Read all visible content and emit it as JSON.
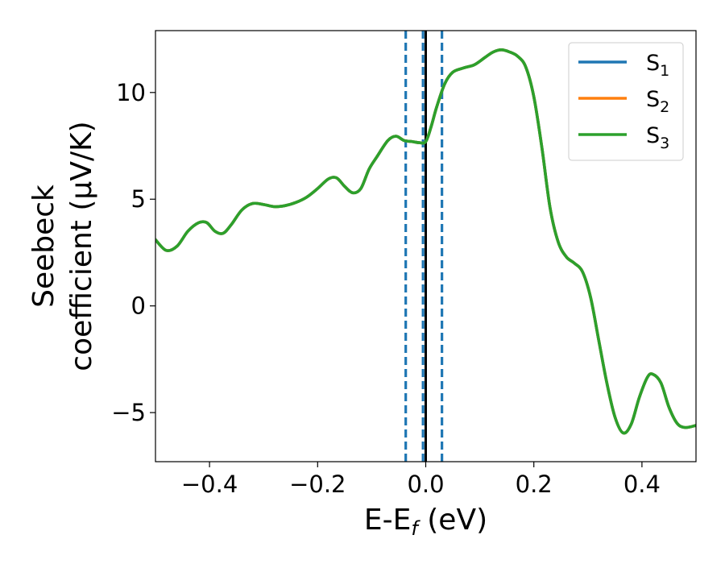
{
  "chart_data": {
    "type": "line",
    "xlabel_main": "E-E",
    "xlabel_sub": "f",
    "xlabel_suffix": " (eV)",
    "ylabel_line1": "Seebeck",
    "ylabel_line2": "coefficient  (μV/K)",
    "xlim": [
      -0.5,
      0.5
    ],
    "ylim": [
      -7.3,
      12.9
    ],
    "xticks": [
      -0.4,
      -0.2,
      0.0,
      0.2,
      0.4
    ],
    "xtick_labels": [
      "−0.4",
      "−0.2",
      "0.0",
      "0.2",
      "0.4"
    ],
    "yticks": [
      -5,
      0,
      5,
      10
    ],
    "ytick_labels": [
      "−5",
      "0",
      "5",
      "10"
    ],
    "grid": false,
    "legend_position": "upper right",
    "vlines": [
      {
        "x": 0.0,
        "style": "solid",
        "color": "#000000"
      },
      {
        "x": -0.037,
        "style": "dashed",
        "color": "#1f77b4"
      },
      {
        "x": -0.005,
        "style": "dashed",
        "color": "#1f77b4"
      },
      {
        "x": 0.03,
        "style": "dashed",
        "color": "#1f77b4"
      }
    ],
    "series": [
      {
        "name_main": "S",
        "name_sub": "1",
        "color": "#1f77b4"
      },
      {
        "name_main": "S",
        "name_sub": "2",
        "color": "#ff7f0e"
      },
      {
        "name_main": "S",
        "name_sub": "3",
        "color": "#2ca02c"
      }
    ],
    "x": [
      -0.5,
      -0.48,
      -0.46,
      -0.44,
      -0.42,
      -0.405,
      -0.39,
      -0.375,
      -0.36,
      -0.34,
      -0.32,
      -0.3,
      -0.28,
      -0.26,
      -0.24,
      -0.22,
      -0.2,
      -0.18,
      -0.165,
      -0.15,
      -0.135,
      -0.12,
      -0.105,
      -0.09,
      -0.07,
      -0.055,
      -0.04,
      -0.025,
      -0.012,
      0.0,
      0.01,
      0.02,
      0.035,
      0.05,
      0.07,
      0.09,
      0.11,
      0.125,
      0.14,
      0.155,
      0.17,
      0.185,
      0.2,
      0.215,
      0.23,
      0.245,
      0.26,
      0.275,
      0.29,
      0.305,
      0.32,
      0.335,
      0.35,
      0.365,
      0.38,
      0.395,
      0.41,
      0.42,
      0.435,
      0.45,
      0.465,
      0.48,
      0.5
    ],
    "y": [
      3.1,
      2.6,
      2.8,
      3.5,
      3.9,
      3.9,
      3.5,
      3.4,
      3.8,
      4.5,
      4.8,
      4.75,
      4.65,
      4.7,
      4.85,
      5.1,
      5.5,
      5.95,
      6.0,
      5.6,
      5.3,
      5.5,
      6.4,
      7.0,
      7.75,
      7.95,
      7.75,
      7.7,
      7.65,
      7.7,
      8.4,
      9.3,
      10.4,
      10.95,
      11.15,
      11.3,
      11.65,
      11.9,
      12.0,
      11.9,
      11.7,
      11.2,
      9.8,
      7.4,
      4.6,
      3.0,
      2.3,
      2.0,
      1.6,
      0.4,
      -1.6,
      -3.6,
      -5.2,
      -5.95,
      -5.55,
      -4.3,
      -3.35,
      -3.2,
      -3.6,
      -4.75,
      -5.5,
      -5.7,
      -5.6
    ]
  }
}
